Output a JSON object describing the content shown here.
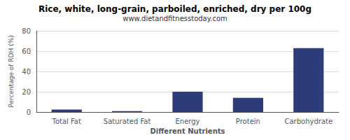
{
  "chart_data": {
    "type": "bar",
    "title": "Rice, white, long-grain, parboiled, enriched, dry per 100g",
    "subtitle": "www.dietandfitnesstoday.com",
    "categories": [
      "Total Fat",
      "Saturated Fat",
      "Energy",
      "Protein",
      "Carbohydrate"
    ],
    "values": [
      2.5,
      0.8,
      20,
      14,
      63
    ],
    "color": "#2e3d7a",
    "xlabel": "Different Nutrients",
    "ylabel": "Percentage of RDH (%)",
    "ylim": [
      0,
      80
    ],
    "yticks": [
      0,
      20,
      40,
      60,
      80
    ],
    "grid": true
  }
}
